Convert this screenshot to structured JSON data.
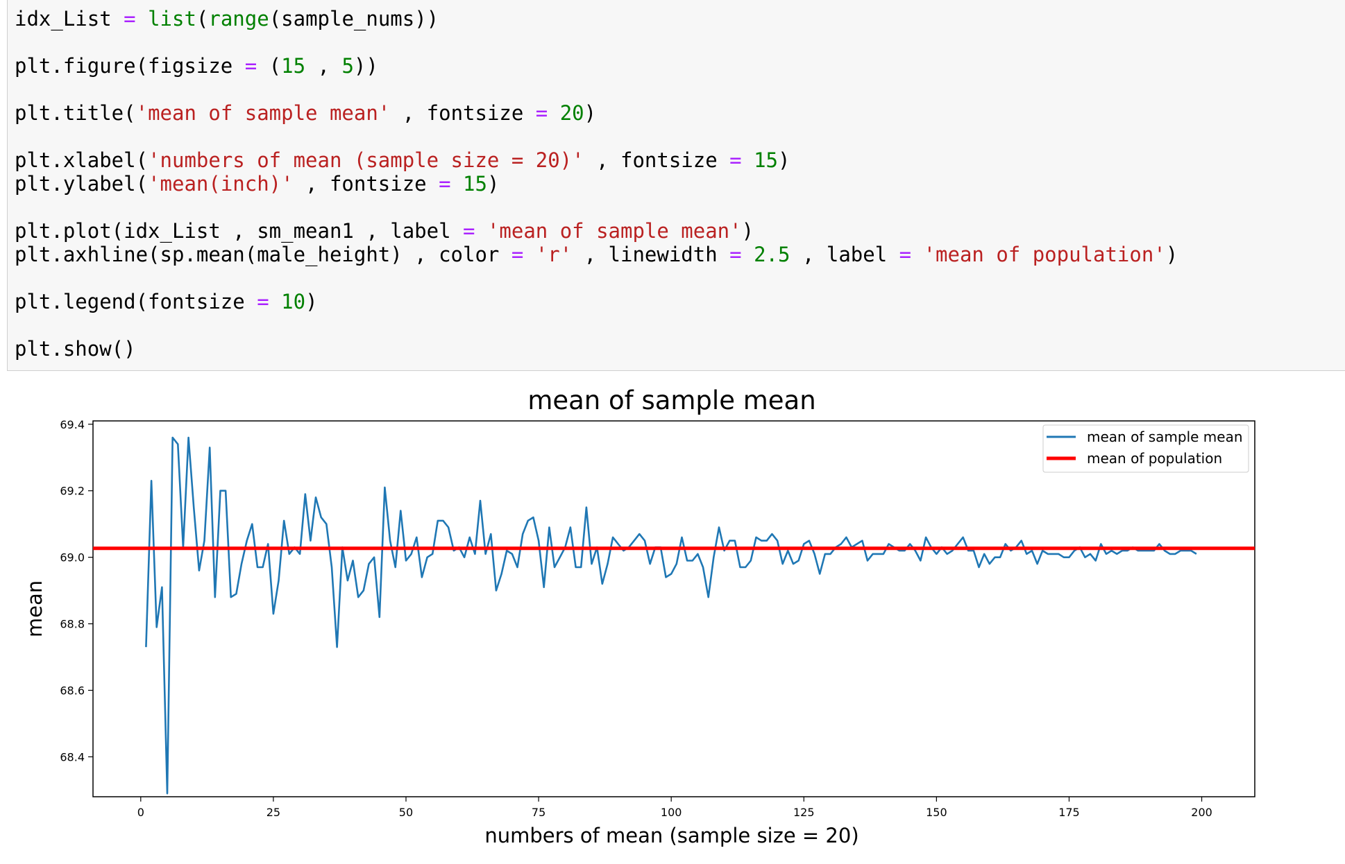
{
  "code_cell": {
    "lines": [
      [
        {
          "t": "idx_List ",
          "c": "plain"
        },
        {
          "t": "=",
          "c": "op"
        },
        {
          "t": " ",
          "c": "plain"
        },
        {
          "t": "list",
          "c": "builtin"
        },
        {
          "t": "(",
          "c": "plain"
        },
        {
          "t": "range",
          "c": "builtin"
        },
        {
          "t": "(sample_nums))",
          "c": "plain"
        }
      ],
      [
        {
          "t": "plt.figure(figsize ",
          "c": "plain"
        },
        {
          "t": "=",
          "c": "op"
        },
        {
          "t": " (",
          "c": "plain"
        },
        {
          "t": "15",
          "c": "num"
        },
        {
          "t": " , ",
          "c": "plain"
        },
        {
          "t": "5",
          "c": "num"
        },
        {
          "t": "))",
          "c": "plain"
        }
      ],
      [
        {
          "t": "plt.title(",
          "c": "plain"
        },
        {
          "t": "'mean of sample mean'",
          "c": "str"
        },
        {
          "t": " , fontsize ",
          "c": "plain"
        },
        {
          "t": "=",
          "c": "op"
        },
        {
          "t": " ",
          "c": "plain"
        },
        {
          "t": "20",
          "c": "num"
        },
        {
          "t": ")",
          "c": "plain"
        }
      ],
      [
        {
          "t": "plt.xlabel(",
          "c": "plain"
        },
        {
          "t": "'numbers of mean (sample size = 20)'",
          "c": "str"
        },
        {
          "t": " , fontsize ",
          "c": "plain"
        },
        {
          "t": "=",
          "c": "op"
        },
        {
          "t": " ",
          "c": "plain"
        },
        {
          "t": "15",
          "c": "num"
        },
        {
          "t": ")",
          "c": "plain"
        }
      ],
      [
        {
          "t": "plt.ylabel(",
          "c": "plain"
        },
        {
          "t": "'mean(inch)'",
          "c": "str"
        },
        {
          "t": " , fontsize ",
          "c": "plain"
        },
        {
          "t": "=",
          "c": "op"
        },
        {
          "t": " ",
          "c": "plain"
        },
        {
          "t": "15",
          "c": "num"
        },
        {
          "t": ")",
          "c": "plain"
        }
      ],
      [
        {
          "t": "plt.plot(idx_List , sm_mean1 , label ",
          "c": "plain"
        },
        {
          "t": "=",
          "c": "op"
        },
        {
          "t": " ",
          "c": "plain"
        },
        {
          "t": "'mean of sample mean'",
          "c": "str"
        },
        {
          "t": ")",
          "c": "plain"
        }
      ],
      [
        {
          "t": "plt.axhline(sp.mean(male_height) , color ",
          "c": "plain"
        },
        {
          "t": "=",
          "c": "op"
        },
        {
          "t": " ",
          "c": "plain"
        },
        {
          "t": "'r'",
          "c": "str"
        },
        {
          "t": " , linewidth ",
          "c": "plain"
        },
        {
          "t": "=",
          "c": "op"
        },
        {
          "t": " ",
          "c": "plain"
        },
        {
          "t": "2.5",
          "c": "num"
        },
        {
          "t": " , label ",
          "c": "plain"
        },
        {
          "t": "=",
          "c": "op"
        },
        {
          "t": " ",
          "c": "plain"
        },
        {
          "t": "'mean of population'",
          "c": "str"
        },
        {
          "t": ")",
          "c": "plain"
        }
      ],
      [
        {
          "t": "plt.legend(fontsize ",
          "c": "plain"
        },
        {
          "t": "=",
          "c": "op"
        },
        {
          "t": " ",
          "c": "plain"
        },
        {
          "t": "10",
          "c": "num"
        },
        {
          "t": ")",
          "c": "plain"
        }
      ],
      [
        {
          "t": "plt.show()",
          "c": "plain"
        }
      ]
    ]
  },
  "colors": {
    "builtin": "#008000",
    "op": "#aa22ff",
    "num": "#008000",
    "str": "#ba2121",
    "plain": "#000000",
    "series_line": "#1f77b4",
    "population_line": "#ff0000"
  },
  "chart_data": {
    "type": "line",
    "title": "mean of sample mean",
    "xlabel": "numbers of mean (sample size = 20)",
    "ylabel": "mean",
    "xlim": [
      -9,
      210
    ],
    "ylim": [
      68.28,
      69.41
    ],
    "xticks": [
      0,
      25,
      50,
      75,
      100,
      125,
      150,
      175,
      200
    ],
    "yticks": [
      68.4,
      68.6,
      68.8,
      69.0,
      69.2,
      69.4
    ],
    "xtick_labels": [
      "0",
      "25",
      "50",
      "75",
      "100",
      "125",
      "150",
      "175",
      "200"
    ],
    "ytick_labels": [
      "68.4",
      "68.6",
      "68.8",
      "69.0",
      "69.2",
      "69.4"
    ],
    "grid": false,
    "legend_position": "upper right",
    "series": [
      {
        "name": "mean of sample mean",
        "color": "#1f77b4",
        "x": [
          1,
          2,
          3,
          4,
          5,
          6,
          7,
          8,
          9,
          10,
          11,
          12,
          13,
          14,
          15,
          16,
          17,
          18,
          19,
          20,
          21,
          22,
          23,
          24,
          25,
          26,
          27,
          28,
          29,
          30,
          31,
          32,
          33,
          34,
          35,
          36,
          37,
          38,
          39,
          40,
          41,
          42,
          43,
          44,
          45,
          46,
          47,
          48,
          49,
          50,
          51,
          52,
          53,
          54,
          55,
          56,
          57,
          58,
          59,
          60,
          61,
          62,
          63,
          64,
          65,
          66,
          67,
          68,
          69,
          70,
          71,
          72,
          73,
          74,
          75,
          76,
          77,
          78,
          79,
          80,
          81,
          82,
          83,
          84,
          85,
          86,
          87,
          88,
          89,
          90,
          91,
          92,
          93,
          94,
          95,
          96,
          97,
          98,
          99,
          100,
          101,
          102,
          103,
          104,
          105,
          106,
          107,
          108,
          109,
          110,
          111,
          112,
          113,
          114,
          115,
          116,
          117,
          118,
          119,
          120,
          121,
          122,
          123,
          124,
          125,
          126,
          127,
          128,
          129,
          130,
          131,
          132,
          133,
          134,
          135,
          136,
          137,
          138,
          139,
          140,
          141,
          142,
          143,
          144,
          145,
          146,
          147,
          148,
          149,
          150,
          151,
          152,
          153,
          154,
          155,
          156,
          157,
          158,
          159,
          160,
          161,
          162,
          163,
          164,
          165,
          166,
          167,
          168,
          169,
          170,
          171,
          172,
          173,
          174,
          175,
          176,
          177,
          178,
          179,
          180,
          181,
          182,
          183,
          184,
          185,
          186,
          187,
          188,
          189,
          190,
          191,
          192,
          193,
          194,
          195,
          196,
          197,
          198,
          199
        ],
        "y": [
          68.73,
          69.23,
          68.79,
          68.91,
          68.29,
          69.36,
          69.34,
          69.03,
          69.36,
          69.15,
          68.96,
          69.05,
          69.33,
          68.88,
          69.2,
          69.2,
          68.88,
          68.89,
          68.98,
          69.05,
          69.1,
          68.97,
          68.97,
          69.04,
          68.83,
          68.93,
          69.11,
          69.01,
          69.03,
          69.01,
          69.19,
          69.05,
          69.18,
          69.12,
          69.1,
          68.97,
          68.73,
          69.03,
          68.93,
          68.99,
          68.88,
          68.9,
          68.98,
          69.0,
          68.82,
          69.21,
          69.05,
          68.97,
          69.14,
          68.99,
          69.01,
          69.06,
          68.94,
          69.0,
          69.01,
          69.11,
          69.11,
          69.09,
          69.02,
          69.03,
          69.0,
          69.06,
          69.01,
          69.17,
          69.01,
          69.07,
          68.9,
          68.95,
          69.02,
          69.01,
          68.97,
          69.07,
          69.11,
          69.12,
          69.05,
          68.91,
          69.09,
          68.97,
          69.0,
          69.03,
          69.09,
          68.97,
          68.97,
          69.15,
          68.98,
          69.03,
          68.92,
          68.98,
          69.06,
          69.04,
          69.02,
          69.03,
          69.05,
          69.07,
          69.05,
          68.98,
          69.03,
          69.03,
          68.94,
          68.95,
          68.98,
          69.06,
          68.99,
          68.99,
          69.01,
          68.97,
          68.88,
          69.0,
          69.09,
          69.02,
          69.05,
          69.05,
          68.97,
          68.97,
          68.99,
          69.06,
          69.05,
          69.05,
          69.07,
          69.05,
          68.98,
          69.02,
          68.98,
          68.99,
          69.04,
          69.05,
          69.01,
          68.95,
          69.01,
          69.01,
          69.03,
          69.04,
          69.06,
          69.03,
          69.04,
          69.05,
          68.99,
          69.01,
          69.01,
          69.01,
          69.04,
          69.03,
          69.02,
          69.02,
          69.04,
          69.02,
          68.99,
          69.06,
          69.03,
          69.01,
          69.03,
          69.01,
          69.02,
          69.04,
          69.06,
          69.02,
          69.02,
          68.97,
          69.01,
          68.98,
          69.0,
          69.0,
          69.04,
          69.02,
          69.03,
          69.05,
          69.01,
          69.02,
          68.98,
          69.02,
          69.01,
          69.01,
          69.01,
          69.0,
          69.0,
          69.02,
          69.03,
          69.0,
          69.01,
          68.99,
          69.04,
          69.01,
          69.02,
          69.01,
          69.02,
          69.02,
          69.03,
          69.02,
          69.02,
          69.02,
          69.02,
          69.04,
          69.02,
          69.01,
          69.01,
          69.02,
          69.02,
          69.02,
          69.01
        ]
      }
    ],
    "reference_lines": [
      {
        "name": "mean of population",
        "orientation": "horizontal",
        "y": 69.027,
        "color": "#ff0000"
      }
    ]
  }
}
